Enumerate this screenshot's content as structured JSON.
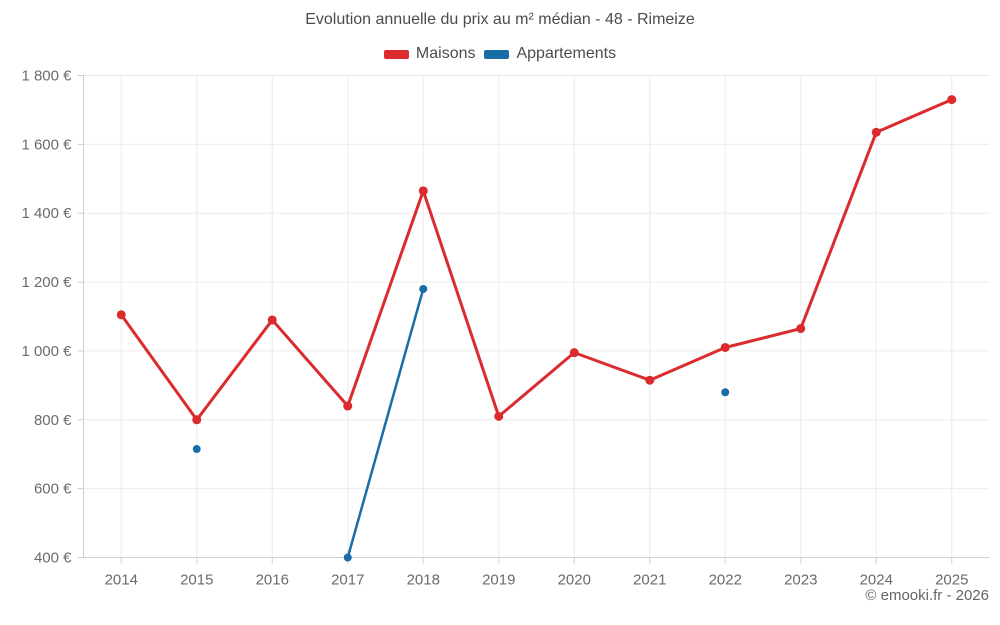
{
  "chart_data": {
    "type": "line",
    "title": "Evolution annuelle du prix au m² médian - 48 - Rimeize",
    "xlabel": "",
    "ylabel": "",
    "ylim": [
      400,
      1800
    ],
    "grid": true,
    "legend_position": "top",
    "categories": [
      "2014",
      "2015",
      "2016",
      "2017",
      "2018",
      "2019",
      "2020",
      "2021",
      "2022",
      "2023",
      "2024",
      "2025"
    ],
    "y_ticks": [
      {
        "value": 400,
        "label": "400 €"
      },
      {
        "value": 600,
        "label": "600 €"
      },
      {
        "value": 800,
        "label": "800 €"
      },
      {
        "value": 1000,
        "label": "1 000 €"
      },
      {
        "value": 1200,
        "label": "1 200 €"
      },
      {
        "value": 1400,
        "label": "1 400 €"
      },
      {
        "value": 1600,
        "label": "1 600 €"
      },
      {
        "value": 1800,
        "label": "1 800 €"
      }
    ],
    "series": [
      {
        "name": "Maisons",
        "color": "#db2b2e",
        "values": [
          1105,
          800,
          1090,
          840,
          1465,
          810,
          995,
          915,
          1010,
          1065,
          1635,
          1730
        ]
      },
      {
        "name": "Appartements",
        "color": "#1a6ca6",
        "values": [
          null,
          715,
          null,
          400,
          1180,
          null,
          null,
          null,
          880,
          null,
          null,
          null
        ]
      }
    ],
    "colors": {
      "grid": "#ececec",
      "axis": "#cfcfcf",
      "tick_text": "#6b6b6b",
      "title_text": "#4c4c4c"
    }
  },
  "footer": {
    "copyright": "© emooki.fr - 2026"
  }
}
